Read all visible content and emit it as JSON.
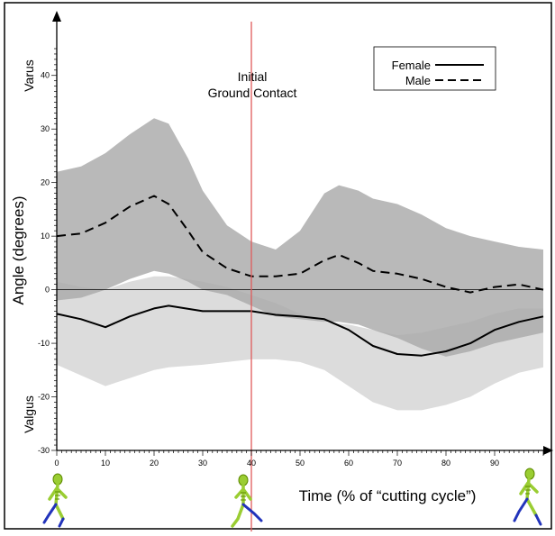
{
  "chart_data": {
    "type": "line",
    "xlabel": "Time (% of “cutting cycle”)",
    "ylabel": "Angle (degrees)",
    "xlim": [
      0,
      100
    ],
    "ylim": [
      -30,
      45
    ],
    "x_ticks": [
      0,
      10,
      20,
      30,
      40,
      50,
      60,
      70,
      80,
      90
    ],
    "y_ticks": [
      -30,
      -20,
      -10,
      0,
      10,
      20,
      30,
      40
    ],
    "annotations": {
      "varus": "Varus",
      "valgus": "Valgus",
      "initial_contact_line1": "Initial",
      "initial_contact_line2": "Ground Contact",
      "initial_contact_x": 40
    },
    "legend": {
      "position": "top-right",
      "entries": [
        {
          "label": "Female",
          "style": "solid"
        },
        {
          "label": "Male",
          "style": "dashed"
        }
      ]
    },
    "series": [
      {
        "name": "Female",
        "style": "solid",
        "color": "#000000",
        "x": [
          0,
          5,
          10,
          15,
          20,
          23,
          30,
          35,
          40,
          45,
          50,
          55,
          60,
          65,
          70,
          75,
          80,
          85,
          90,
          95,
          100
        ],
        "y": [
          -4.5,
          -5.5,
          -7.0,
          -5.0,
          -3.5,
          -3.0,
          -4.0,
          -4.0,
          -4.0,
          -4.7,
          -5.0,
          -5.5,
          -7.5,
          -10.5,
          -12.0,
          -12.3,
          -11.5,
          -10.0,
          -7.5,
          -6.0,
          -5.0
        ],
        "band_upper": [
          1.5,
          0.5,
          0.0,
          1.5,
          2.5,
          2.5,
          1.5,
          0.5,
          -1.0,
          -2.5,
          -4.5,
          -6.0,
          -6.5,
          -7.5,
          -8.5,
          -8.0,
          -7.0,
          -6.0,
          -4.5,
          -3.5,
          -3.5
        ],
        "band_lower": [
          -14.0,
          -16.0,
          -18.0,
          -16.5,
          -15.0,
          -14.5,
          -14.0,
          -13.5,
          -13.0,
          -13.0,
          -13.5,
          -15.0,
          -18.0,
          -21.0,
          -22.5,
          -22.5,
          -21.5,
          -20.0,
          -17.5,
          -15.5,
          -14.5
        ]
      },
      {
        "name": "Male",
        "style": "dashed",
        "color": "#000000",
        "x": [
          0,
          5,
          10,
          15,
          20,
          23,
          27,
          30,
          35,
          40,
          45,
          50,
          55,
          58,
          62,
          65,
          70,
          75,
          80,
          85,
          90,
          95,
          100
        ],
        "y": [
          10.0,
          10.5,
          12.5,
          15.5,
          17.5,
          16.0,
          11.0,
          7.0,
          4.0,
          2.5,
          2.5,
          3.0,
          5.5,
          6.5,
          5.0,
          3.5,
          3.0,
          2.0,
          0.5,
          -0.5,
          0.5,
          1.0,
          0.0
        ],
        "band_upper": [
          22.0,
          23.0,
          25.5,
          29.0,
          32.0,
          31.0,
          24.5,
          18.5,
          12.0,
          9.0,
          7.5,
          11.0,
          18.0,
          19.5,
          18.5,
          17.0,
          16.0,
          14.0,
          11.5,
          10.0,
          9.0,
          8.0,
          7.5
        ],
        "band_lower": [
          -2.0,
          -1.5,
          0.0,
          2.0,
          3.5,
          3.0,
          1.5,
          0.0,
          -1.0,
          -3.0,
          -5.0,
          -5.5,
          -6.0,
          -6.0,
          -6.5,
          -7.5,
          -9.0,
          -11.0,
          -12.5,
          -11.5,
          -10.0,
          -9.0,
          -8.0
        ]
      }
    ]
  },
  "figures": {
    "left": "skeleton-runner",
    "middle": "skeleton-runner",
    "right": "skeleton-runner"
  },
  "colors": {
    "female_band": "#dcdcdc",
    "male_band": "#a9a9a9",
    "contact_line": "#e05a5a",
    "line": "#000000",
    "skeleton_bone": "#9acd32",
    "skeleton_leg": "#2233bb"
  }
}
